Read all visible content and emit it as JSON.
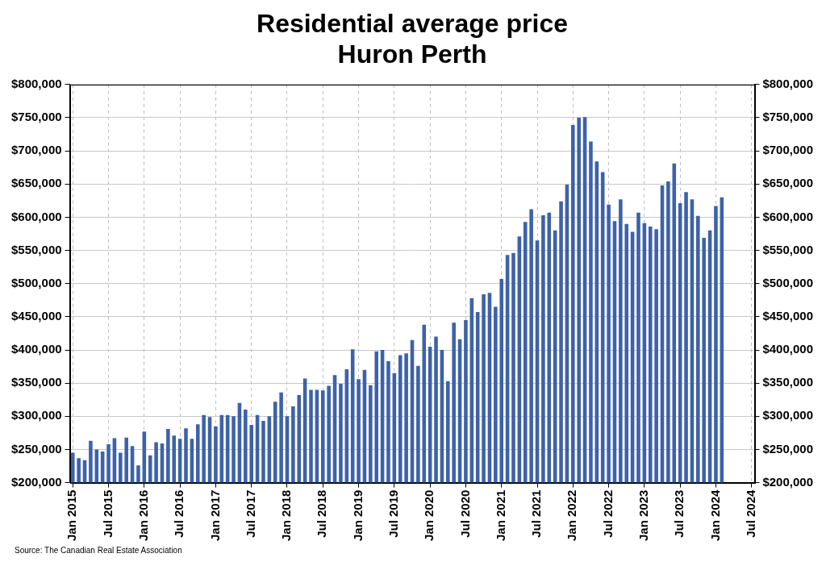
{
  "chart_data": {
    "type": "bar",
    "title": "Residential average price",
    "subtitle": "Huron Perth",
    "source": "Source: The Canadian Real Estate Association",
    "categories": [
      "Jan 2015",
      null,
      null,
      null,
      null,
      null,
      "Jul 2015",
      null,
      null,
      null,
      null,
      null,
      "Jan 2016",
      null,
      null,
      null,
      null,
      null,
      "Jul 2016",
      null,
      null,
      null,
      null,
      null,
      "Jan 2017",
      null,
      null,
      null,
      null,
      null,
      "Jul 2017",
      null,
      null,
      null,
      null,
      null,
      "Jan 2018",
      null,
      null,
      null,
      null,
      null,
      "Jul 2018",
      null,
      null,
      null,
      null,
      null,
      "Jan 2019",
      null,
      null,
      null,
      null,
      null,
      "Jul 2019",
      null,
      null,
      null,
      null,
      null,
      "Jan 2020",
      null,
      null,
      null,
      null,
      null,
      "Jul 2020",
      null,
      null,
      null,
      null,
      null,
      "Jan 2021",
      null,
      null,
      null,
      null,
      null,
      "Jul 2021",
      null,
      null,
      null,
      null,
      null,
      "Jan 2022",
      null,
      null,
      null,
      null,
      null,
      "Jul 2022",
      null,
      null,
      null,
      null,
      null,
      "Jan 2023",
      null,
      null,
      null,
      null,
      null,
      "Jul 2023",
      null,
      null,
      null,
      null,
      null,
      "Jan 2024",
      null,
      null,
      null,
      null,
      null,
      "Jul 2024"
    ],
    "values": [
      245000,
      237000,
      234000,
      263000,
      250000,
      247000,
      258000,
      267000,
      245000,
      268000,
      255000,
      226000,
      277000,
      241000,
      261000,
      259000,
      281000,
      271000,
      266000,
      282000,
      266000,
      288000,
      302000,
      299000,
      285000,
      302000,
      302000,
      300000,
      320000,
      310000,
      287000,
      302000,
      293000,
      300000,
      322000,
      336000,
      300000,
      315000,
      332000,
      357000,
      340000,
      340000,
      339000,
      346000,
      362000,
      349000,
      371000,
      401000,
      356000,
      370000,
      347000,
      398000,
      400000,
      383000,
      365000,
      392000,
      395000,
      415000,
      376000,
      438000,
      405000,
      420000,
      400000,
      353000,
      441000,
      416000,
      445000,
      478000,
      457000,
      484000,
      486000,
      465000,
      507000,
      543000,
      546000,
      571000,
      593000,
      612000,
      565000,
      603000,
      607000,
      580000,
      624000,
      649000,
      739000,
      750000,
      751000,
      714000,
      684000,
      668000,
      619000,
      594000,
      627000,
      590000,
      578000,
      607000,
      591000,
      586000,
      582000,
      648000,
      654000,
      681000,
      621000,
      638000,
      627000,
      602000,
      569000,
      580000,
      617000,
      630000,
      null,
      null,
      null,
      null,
      null
    ],
    "color": "#3d62a8",
    "ylim": [
      200000,
      800000
    ],
    "yticks": [
      {
        "value": 200000,
        "label": "$200,000"
      },
      {
        "value": 250000,
        "label": "$250,000"
      },
      {
        "value": 300000,
        "label": "$300,000"
      },
      {
        "value": 350000,
        "label": "$350,000"
      },
      {
        "value": 400000,
        "label": "$400,000"
      },
      {
        "value": 450000,
        "label": "$450,000"
      },
      {
        "value": 500000,
        "label": "$500,000"
      },
      {
        "value": 550000,
        "label": "$550,000"
      },
      {
        "value": 600000,
        "label": "$600,000"
      },
      {
        "value": 650000,
        "label": "$650,000"
      },
      {
        "value": 700000,
        "label": "$700,000"
      },
      {
        "value": 750000,
        "label": "$750,000"
      },
      {
        "value": 800000,
        "label": "$800,000"
      }
    ],
    "grid": true
  }
}
